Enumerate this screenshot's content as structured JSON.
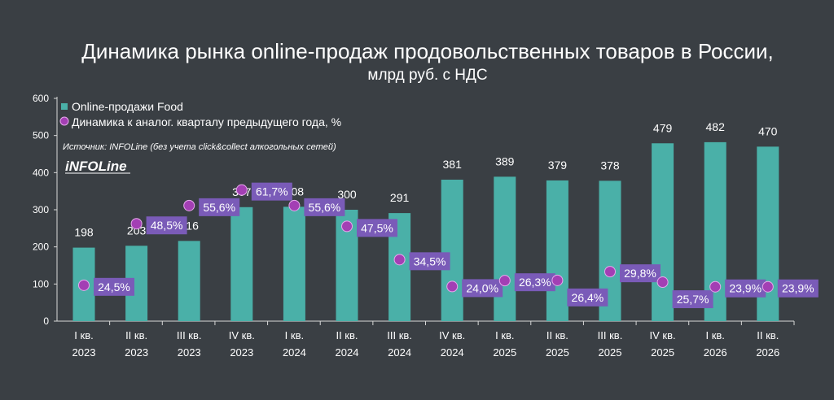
{
  "chart_data": {
    "type": "bar",
    "title": "Динамика рынка online-продаж продовольственных товаров в России,",
    "subtitle": "млрд руб. с НДС",
    "categories": [
      [
        "I кв.",
        "2023"
      ],
      [
        "II кв.",
        "2023"
      ],
      [
        "III кв.",
        "2023"
      ],
      [
        "IV кв.",
        "2023"
      ],
      [
        "I кв.",
        "2024"
      ],
      [
        "II кв.",
        "2024"
      ],
      [
        "III кв.",
        "2024"
      ],
      [
        "IV кв.",
        "2024"
      ],
      [
        "I кв.",
        "2025"
      ],
      [
        "II кв.",
        "2025"
      ],
      [
        "III кв.",
        "2025"
      ],
      [
        "IV кв.",
        "2025"
      ],
      [
        "I кв.",
        "2026"
      ],
      [
        "II кв.",
        "2026"
      ]
    ],
    "series": [
      {
        "name": "Online-продажи Food",
        "values": [
          198,
          203,
          216,
          307,
          308,
          300,
          291,
          381,
          389,
          379,
          378,
          479,
          482,
          470
        ],
        "color": "#4ab0a8"
      },
      {
        "name": "Динамика к аналог. кварталу предыдущего года, %",
        "values": [
          24.5,
          48.5,
          55.6,
          61.7,
          55.6,
          47.5,
          34.5,
          24.0,
          26.3,
          26.4,
          29.8,
          25.7,
          23.9,
          23.9
        ],
        "labels": [
          "24,5%",
          "48,5%",
          "55,6%",
          "61,7%",
          "55,6%",
          "47,5%",
          "34,5%",
          "24,0%",
          "26,3%",
          "26,4%",
          "29,8%",
          "25,7%",
          "23,9%",
          "23,9%"
        ],
        "label_color": "#7a5bb8",
        "marker_color": "#a33fb4"
      }
    ],
    "yticks": [
      0,
      100,
      200,
      300,
      400,
      500,
      600
    ],
    "ylim": [
      0,
      600
    ],
    "grid": false,
    "legend_position": "top-left",
    "source": "Источник: INFOLine (без учета click&collect алкогольных сетей)",
    "logo_text": "iNFOLine"
  }
}
